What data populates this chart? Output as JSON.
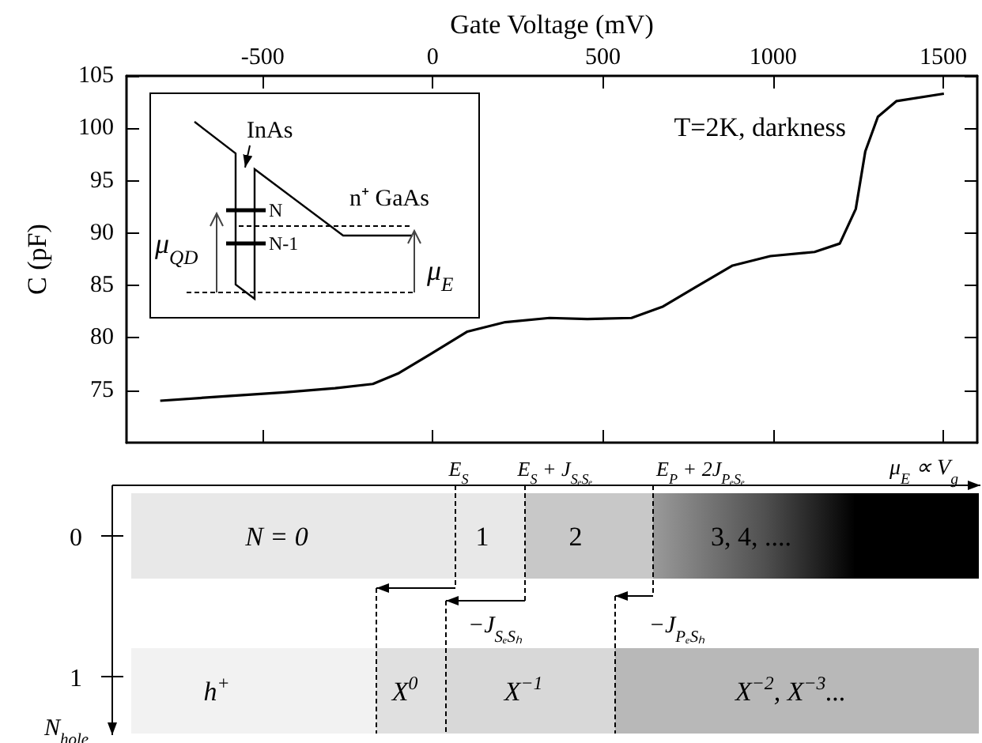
{
  "chart_data": {
    "type": "line",
    "xlabel": "Gate Voltage (mV)",
    "ylabel": "C (pF)",
    "x": [
      -801,
      -621,
      -436,
      -287,
      -176,
      -102,
      -9,
      102,
      213,
      343,
      454,
      584,
      677,
      770,
      881,
      992,
      1122,
      1196,
      1243,
      1271,
      1308,
      1363,
      1502
    ],
    "series": [
      {
        "color": "#000000",
        "values": [
          74.0,
          74.4,
          74.8,
          75.2,
          75.6,
          76.6,
          78.4,
          80.6,
          81.5,
          81.9,
          81.8,
          81.9,
          83.0,
          84.8,
          86.9,
          87.8,
          88.2,
          89.0,
          92.3,
          97.8,
          101.1,
          102.6,
          103.3
        ]
      }
    ],
    "xlim": [
      -900,
      1600
    ],
    "xticks": [
      -500,
      0,
      500,
      1000,
      1500
    ],
    "ylim": [
      70,
      105
    ],
    "yticks": [
      75,
      80,
      85,
      90,
      95,
      100,
      105
    ],
    "grid": false,
    "marker": "none",
    "annotations": [
      "T=2K, darkness",
      "InAs",
      "N",
      "N-1",
      "n⁺ GaAs",
      "μ$_{QD}$",
      "μ$_{E}$",
      "E$_{S}$",
      "E$_{S}$ + J$_{SₑSₑ}$",
      "E$_{P}$ + 2J$_{PₑSₑ}$",
      "μ$_{E}$ ∝ V$_{g}$",
      "N = 0",
      "1",
      "2",
      "3, 4, ....",
      "−J$_{SₑSₕ}$",
      "−J$_{PₑSₕ}$",
      "h$^{+}$",
      "X$^{0}$",
      "X$^{−1}$",
      "X$^{−2}$, X$^{−3}$...",
      "0",
      "1",
      "N$_{hole}$"
    ]
  }
}
